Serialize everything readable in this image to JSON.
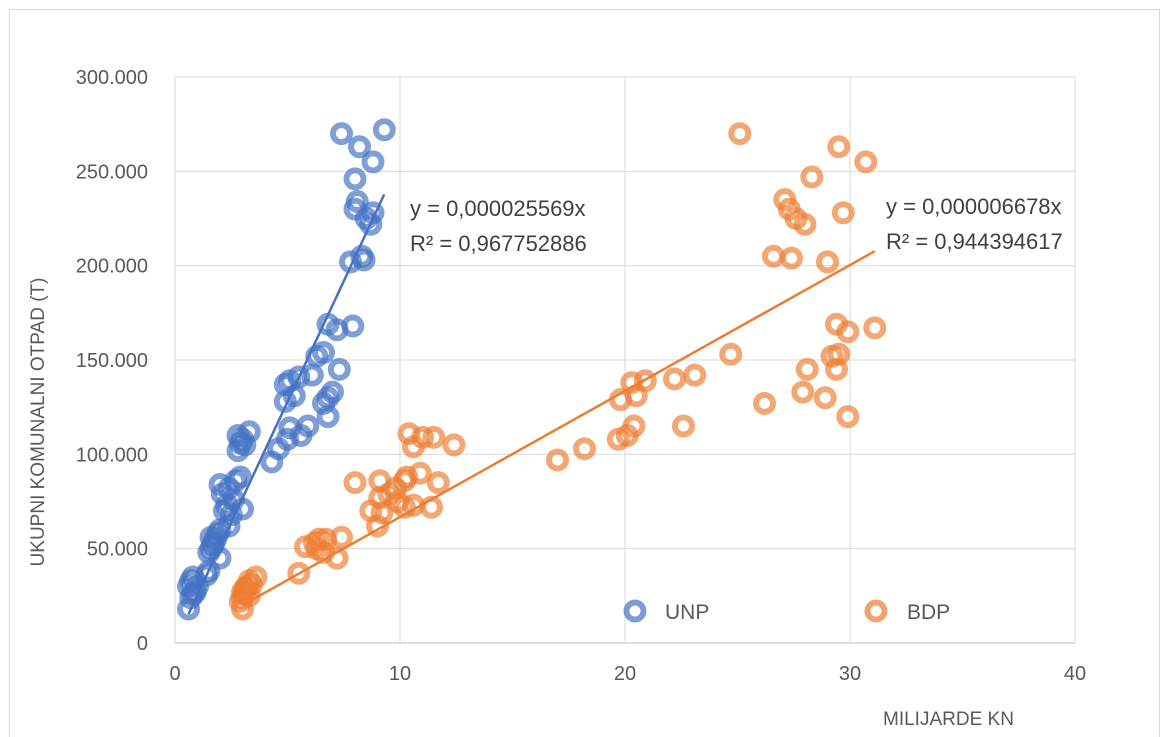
{
  "chart_data": {
    "type": "scatter",
    "xlabel": "MILIJARDE KN",
    "ylabel": "UKUPNI KOMUNALNI OTPAD (T)",
    "xlim": [
      0,
      40
    ],
    "ylim": [
      0,
      300000
    ],
    "x_ticks": [
      "0",
      "10",
      "20",
      "30",
      "40"
    ],
    "y_ticks": [
      "0",
      "50.000",
      "100.000",
      "150.000",
      "200.000",
      "250.000",
      "300.000"
    ],
    "grid": true,
    "legend_position": "bottom-right",
    "series": [
      {
        "name": "UNP",
        "color": "#4472C4",
        "points": [
          [
            0.6,
            18000
          ],
          [
            0.6,
            30000
          ],
          [
            0.7,
            33000
          ],
          [
            0.8,
            35000
          ],
          [
            0.7,
            24000
          ],
          [
            0.9,
            27000
          ],
          [
            0.8,
            26000
          ],
          [
            1.0,
            30000
          ],
          [
            1.4,
            36000
          ],
          [
            1.5,
            38000
          ],
          [
            1.5,
            48000
          ],
          [
            1.6,
            50000
          ],
          [
            1.7,
            52000
          ],
          [
            1.8,
            55000
          ],
          [
            1.6,
            56000
          ],
          [
            1.9,
            58000
          ],
          [
            2.0,
            45000
          ],
          [
            1.7,
            53000
          ],
          [
            2.0,
            60000
          ],
          [
            2.2,
            70000
          ],
          [
            2.4,
            62000
          ],
          [
            2.5,
            68000
          ],
          [
            2.3,
            73000
          ],
          [
            2.6,
            76000
          ],
          [
            2.1,
            79000
          ],
          [
            2.4,
            82000
          ],
          [
            2.0,
            84000
          ],
          [
            2.7,
            86000
          ],
          [
            2.9,
            88000
          ],
          [
            3.0,
            71000
          ],
          [
            2.8,
            102000
          ],
          [
            2.9,
            106000
          ],
          [
            2.8,
            110000
          ],
          [
            3.0,
            108000
          ],
          [
            3.1,
            105000
          ],
          [
            3.3,
            112000
          ],
          [
            4.3,
            96000
          ],
          [
            4.6,
            103000
          ],
          [
            5.0,
            108000
          ],
          [
            5.1,
            114000
          ],
          [
            5.6,
            110000
          ],
          [
            5.9,
            115000
          ],
          [
            4.9,
            128000
          ],
          [
            5.3,
            131000
          ],
          [
            4.9,
            137000
          ],
          [
            5.1,
            139000
          ],
          [
            5.5,
            141000
          ],
          [
            6.1,
            142000
          ],
          [
            6.3,
            152000
          ],
          [
            6.6,
            154000
          ],
          [
            6.8,
            169000
          ],
          [
            7.2,
            166000
          ],
          [
            7.9,
            168000
          ],
          [
            7.3,
            145000
          ],
          [
            6.6,
            127000
          ],
          [
            6.8,
            130000
          ],
          [
            7.0,
            133000
          ],
          [
            6.8,
            120000
          ],
          [
            7.8,
            202000
          ],
          [
            8.3,
            205000
          ],
          [
            8.4,
            203000
          ],
          [
            8.0,
            230000
          ],
          [
            8.1,
            234000
          ],
          [
            8.5,
            225000
          ],
          [
            8.7,
            222000
          ],
          [
            8.8,
            228000
          ],
          [
            8.0,
            246000
          ],
          [
            8.2,
            263000
          ],
          [
            8.8,
            255000
          ],
          [
            7.4,
            270000
          ],
          [
            9.3,
            272000
          ]
        ]
      },
      {
        "name": "BDP",
        "color": "#ED7D31",
        "points": [
          [
            3.0,
            18000
          ],
          [
            2.9,
            22000
          ],
          [
            3.0,
            24000
          ],
          [
            3.1,
            26000
          ],
          [
            3.0,
            27000
          ],
          [
            3.2,
            30000
          ],
          [
            3.4,
            31000
          ],
          [
            3.3,
            33000
          ],
          [
            3.6,
            35000
          ],
          [
            3.1,
            29000
          ],
          [
            3.3,
            25000
          ],
          [
            5.5,
            37000
          ],
          [
            5.8,
            51000
          ],
          [
            6.2,
            53000
          ],
          [
            6.4,
            55000
          ],
          [
            6.7,
            55000
          ],
          [
            6.3,
            50000
          ],
          [
            6.6,
            48000
          ],
          [
            7.2,
            45000
          ],
          [
            7.4,
            56000
          ],
          [
            8.0,
            85000
          ],
          [
            8.7,
            70000
          ],
          [
            9.0,
            62000
          ],
          [
            9.2,
            69000
          ],
          [
            9.1,
            77000
          ],
          [
            9.5,
            79000
          ],
          [
            9.9,
            75000
          ],
          [
            10.2,
            86000
          ],
          [
            10.3,
            88000
          ],
          [
            10.2,
            72000
          ],
          [
            10.6,
            73000
          ],
          [
            10.9,
            90000
          ],
          [
            11.4,
            72000
          ],
          [
            11.7,
            85000
          ],
          [
            9.1,
            86000
          ],
          [
            9.8,
            82000
          ],
          [
            10.4,
            111000
          ],
          [
            10.6,
            104000
          ],
          [
            11.0,
            109000
          ],
          [
            11.5,
            109000
          ],
          [
            12.4,
            105000
          ],
          [
            17.0,
            97000
          ],
          [
            18.2,
            103000
          ],
          [
            19.7,
            108000
          ],
          [
            20.1,
            110000
          ],
          [
            20.4,
            115000
          ],
          [
            22.6,
            115000
          ],
          [
            19.8,
            129000
          ],
          [
            20.5,
            131000
          ],
          [
            20.3,
            138000
          ],
          [
            20.9,
            139000
          ],
          [
            22.2,
            140000
          ],
          [
            23.1,
            142000
          ],
          [
            24.7,
            153000
          ],
          [
            26.2,
            127000
          ],
          [
            27.9,
            133000
          ],
          [
            28.1,
            145000
          ],
          [
            28.9,
            130000
          ],
          [
            29.2,
            152000
          ],
          [
            29.5,
            153000
          ],
          [
            29.4,
            145000
          ],
          [
            29.9,
            120000
          ],
          [
            29.4,
            169000
          ],
          [
            29.9,
            165000
          ],
          [
            31.1,
            167000
          ],
          [
            26.6,
            205000
          ],
          [
            27.4,
            204000
          ],
          [
            29.0,
            202000
          ],
          [
            27.1,
            235000
          ],
          [
            27.3,
            230000
          ],
          [
            27.6,
            225000
          ],
          [
            28.0,
            222000
          ],
          [
            29.7,
            228000
          ],
          [
            28.3,
            247000
          ],
          [
            29.5,
            263000
          ],
          [
            30.7,
            255000
          ],
          [
            25.1,
            270000
          ]
        ]
      }
    ],
    "trendlines": [
      {
        "series": "UNP",
        "color": "#4472C4",
        "x_start": 0.6,
        "x_end": 9.3,
        "slope": 2.5569e-05,
        "equation": "y = 0,000025569x",
        "r2": "R² = 0,967752886"
      },
      {
        "series": "BDP",
        "color": "#ED7D31",
        "x_start": 3.0,
        "x_end": 31.1,
        "slope": 6.678e-06,
        "equation": "y = 0,000006678x",
        "r2": "R² = 0,944394617"
      }
    ]
  }
}
